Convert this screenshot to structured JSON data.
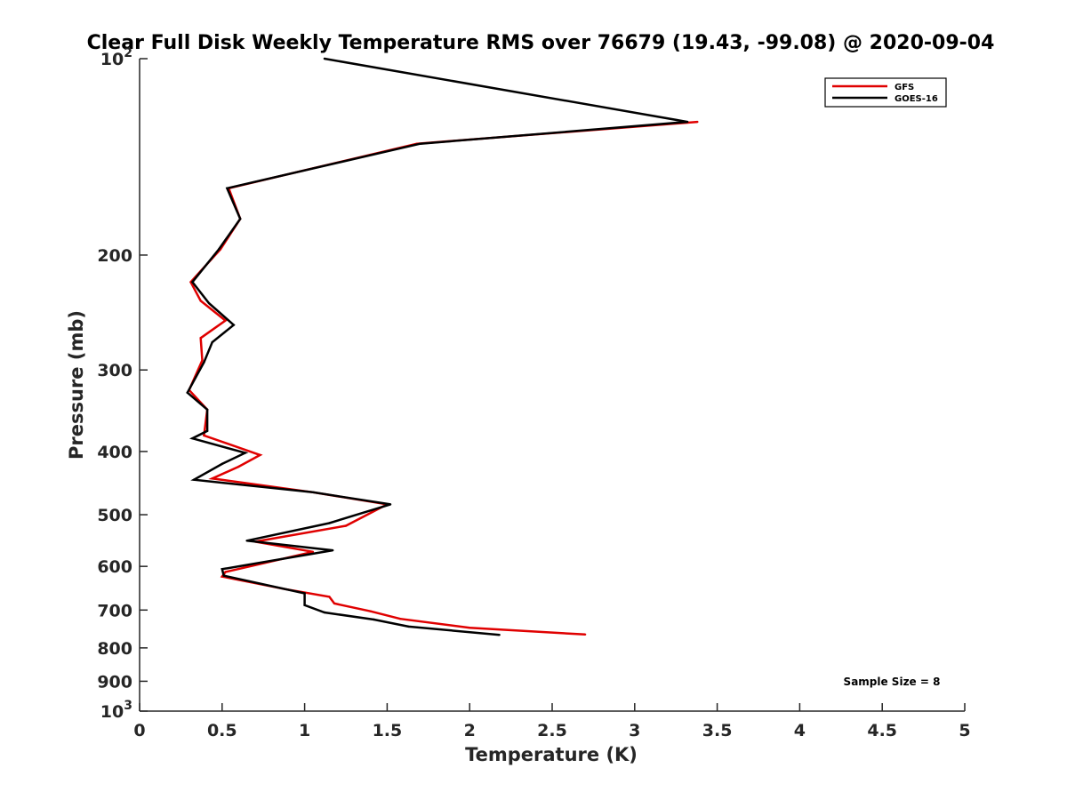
{
  "chart_data": {
    "type": "line",
    "title": "Clear Full Disk Weekly Temperature RMS over 76679 (19.43, -99.08) @ 2020-09-04",
    "xlabel": "Temperature (K)",
    "ylabel": "Pressure (mb)",
    "xlim": [
      0,
      5
    ],
    "ylim": [
      100,
      1000
    ],
    "y_scale": "log",
    "y_reversed": true,
    "grid": false,
    "legend_position": "top-right",
    "x_ticks": [
      {
        "value": 0,
        "label": "0"
      },
      {
        "value": 0.5,
        "label": "0.5"
      },
      {
        "value": 1,
        "label": "1"
      },
      {
        "value": 1.5,
        "label": "1.5"
      },
      {
        "value": 2,
        "label": "2"
      },
      {
        "value": 2.5,
        "label": "2.5"
      },
      {
        "value": 3,
        "label": "3"
      },
      {
        "value": 3.5,
        "label": "3.5"
      },
      {
        "value": 4,
        "label": "4"
      },
      {
        "value": 4.5,
        "label": "4.5"
      },
      {
        "value": 5,
        "label": "5"
      }
    ],
    "y_ticks": [
      {
        "value": 100,
        "base": "10",
        "exp": "2"
      },
      {
        "value": 200,
        "base": "200",
        "exp": ""
      },
      {
        "value": 300,
        "base": "300",
        "exp": ""
      },
      {
        "value": 400,
        "base": "400",
        "exp": ""
      },
      {
        "value": 500,
        "base": "500",
        "exp": ""
      },
      {
        "value": 600,
        "base": "600",
        "exp": ""
      },
      {
        "value": 700,
        "base": "700",
        "exp": ""
      },
      {
        "value": 800,
        "base": "800",
        "exp": ""
      },
      {
        "value": 900,
        "base": "900",
        "exp": ""
      },
      {
        "value": 1000,
        "base": "10",
        "exp": "3"
      }
    ],
    "annotation": "Sample Size = 8",
    "series": [
      {
        "name": "GFS",
        "color": "#e00000",
        "points": [
          [
            3.38,
            125
          ],
          [
            1.68,
            135
          ],
          [
            0.54,
            158
          ],
          [
            0.61,
            176
          ],
          [
            0.49,
            196
          ],
          [
            0.31,
            220
          ],
          [
            0.37,
            235
          ],
          [
            0.52,
            252
          ],
          [
            0.37,
            268
          ],
          [
            0.38,
            290
          ],
          [
            0.3,
            322
          ],
          [
            0.41,
            345
          ],
          [
            0.39,
            378
          ],
          [
            0.73,
            405
          ],
          [
            0.6,
            422
          ],
          [
            0.44,
            440
          ],
          [
            1.05,
            462
          ],
          [
            1.5,
            482
          ],
          [
            1.25,
            520
          ],
          [
            0.7,
            550
          ],
          [
            1.05,
            570
          ],
          [
            0.52,
            612
          ],
          [
            0.5,
            622
          ],
          [
            0.88,
            650
          ],
          [
            1.15,
            668
          ],
          [
            1.18,
            684
          ],
          [
            1.4,
            703
          ],
          [
            1.58,
            722
          ],
          [
            2.0,
            745
          ],
          [
            2.7,
            763
          ]
        ]
      },
      {
        "name": "GOES-16",
        "color": "#000000",
        "points": [
          [
            1.12,
            100
          ],
          [
            3.32,
            125
          ],
          [
            1.7,
            135
          ],
          [
            0.53,
            158
          ],
          [
            0.61,
            176
          ],
          [
            0.48,
            196
          ],
          [
            0.32,
            220
          ],
          [
            0.42,
            237
          ],
          [
            0.57,
            256
          ],
          [
            0.44,
            272
          ],
          [
            0.39,
            292
          ],
          [
            0.29,
            325
          ],
          [
            0.41,
            345
          ],
          [
            0.41,
            372
          ],
          [
            0.32,
            382
          ],
          [
            0.64,
            402
          ],
          [
            0.5,
            418
          ],
          [
            0.33,
            442
          ],
          [
            1.05,
            462
          ],
          [
            1.52,
            482
          ],
          [
            1.15,
            515
          ],
          [
            0.65,
            548
          ],
          [
            1.17,
            567
          ],
          [
            0.5,
            606
          ],
          [
            0.51,
            620
          ],
          [
            1.0,
            660
          ],
          [
            1.0,
            688
          ],
          [
            1.12,
            706
          ],
          [
            1.42,
            724
          ],
          [
            1.63,
            742
          ],
          [
            2.18,
            764
          ]
        ]
      }
    ]
  }
}
